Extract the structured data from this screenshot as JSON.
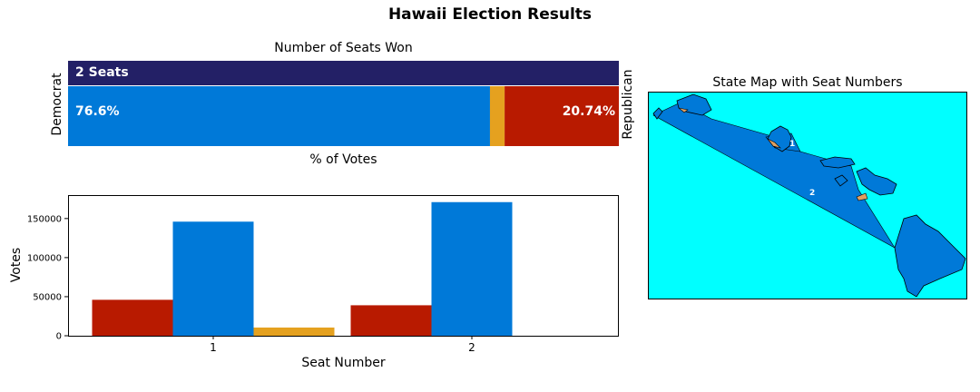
{
  "title": "Hawaii Election Results",
  "colors": {
    "democrat": "#0079d8",
    "republican": "#b81a00",
    "other": "#e5a11f",
    "seats_bar": "#232066",
    "map_ocean": "#00ffff",
    "map_land_other": "#e0a060"
  },
  "top_panel": {
    "subtitle": "Number of Seats Won",
    "seats_label": "2 Seats",
    "left_label": "Democrat",
    "right_label": "Republican",
    "xlabel": "% of Votes",
    "dem_pct_label": "76.6%",
    "rep_pct_label": "20.74%"
  },
  "map_panel": {
    "subtitle": "State Map with Seat Numbers",
    "district_labels": [
      "1",
      "2"
    ]
  },
  "chart_data": [
    {
      "type": "bar",
      "stacked": true,
      "orientation": "horizontal",
      "segments": [
        {
          "name": "Democrat",
          "value": 76.6
        },
        {
          "name": "Other",
          "value": 2.66
        },
        {
          "name": "Republican",
          "value": 20.74
        }
      ],
      "xlim": [
        0,
        100
      ]
    },
    {
      "type": "bar",
      "categories": [
        "1",
        "2"
      ],
      "series": [
        {
          "values": [
            46000,
            39000
          ]
        },
        {
          "values": [
            146000,
            171000
          ]
        },
        {
          "values": [
            10500,
            0
          ]
        }
      ],
      "xlabel": "Seat Number",
      "ylabel": "Votes",
      "ylim": [
        0,
        180000
      ],
      "yticks": [
        0,
        50000,
        100000,
        150000
      ]
    }
  ]
}
